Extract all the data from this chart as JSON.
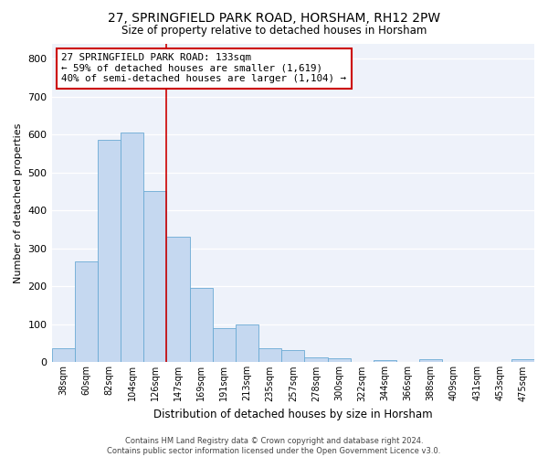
{
  "title": "27, SPRINGFIELD PARK ROAD, HORSHAM, RH12 2PW",
  "subtitle": "Size of property relative to detached houses in Horsham",
  "xlabel": "Distribution of detached houses by size in Horsham",
  "ylabel": "Number of detached properties",
  "bar_color": "#c5d8f0",
  "bar_edge_color": "#6aaad4",
  "background_color": "#eef2fa",
  "grid_color": "#ffffff",
  "annotation_box_color": "#ffffff",
  "annotation_box_edge": "#cc0000",
  "redline_color": "#cc0000",
  "categories": [
    "38sqm",
    "60sqm",
    "82sqm",
    "104sqm",
    "126sqm",
    "147sqm",
    "169sqm",
    "191sqm",
    "213sqm",
    "235sqm",
    "257sqm",
    "278sqm",
    "300sqm",
    "322sqm",
    "344sqm",
    "366sqm",
    "388sqm",
    "409sqm",
    "431sqm",
    "453sqm",
    "475sqm"
  ],
  "values": [
    37,
    265,
    585,
    605,
    450,
    330,
    197,
    90,
    100,
    38,
    32,
    14,
    10,
    0,
    5,
    0,
    7,
    0,
    0,
    0,
    7
  ],
  "redline_index": 4,
  "ylim": [
    0,
    840
  ],
  "yticks": [
    0,
    100,
    200,
    300,
    400,
    500,
    600,
    700,
    800
  ],
  "annotation_lines": [
    "27 SPRINGFIELD PARK ROAD: 133sqm",
    "← 59% of detached houses are smaller (1,619)",
    "40% of semi-detached houses are larger (1,104) →"
  ],
  "footer_lines": [
    "Contains HM Land Registry data © Crown copyright and database right 2024.",
    "Contains public sector information licensed under the Open Government Licence v3.0."
  ]
}
